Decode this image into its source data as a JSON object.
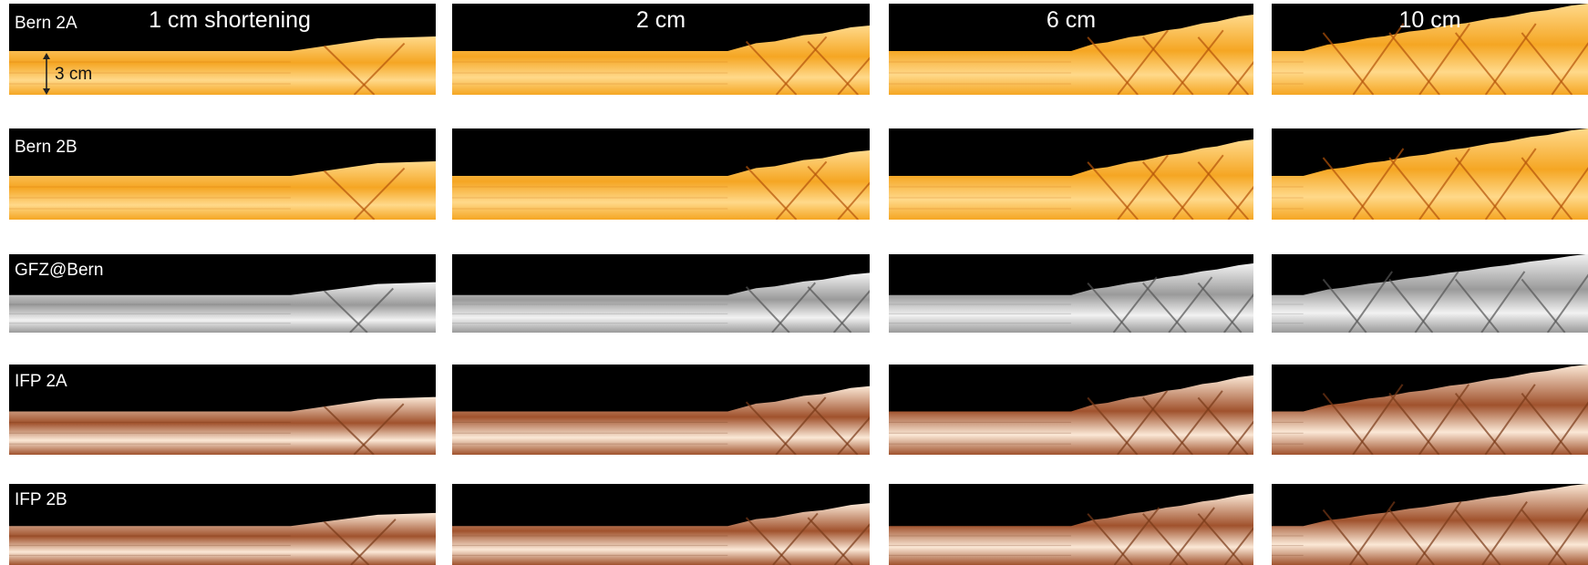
{
  "columns": [
    {
      "title": "1 cm shortening"
    },
    {
      "title": "2 cm"
    },
    {
      "title": "6 cm"
    },
    {
      "title": "10 cm"
    }
  ],
  "rows": [
    {
      "label": "Bern 2A",
      "palette": "orange"
    },
    {
      "label": "Bern 2B",
      "palette": "orange"
    },
    {
      "label": "GFZ@Bern",
      "palette": "gray"
    },
    {
      "label": "IFP 2A",
      "palette": "brown"
    },
    {
      "label": "IFP 2B",
      "palette": "brown"
    }
  ],
  "scale_bar": {
    "label": "3 cm"
  },
  "colors": {
    "background": "#000000",
    "orange_light": "#ffd98a",
    "orange_mid": "#f5a623",
    "gray_light": "#f2f2f2",
    "gray_mid": "#9a9a9a",
    "brown_light": "#fbe8d6",
    "brown_mid": "#a0522d"
  }
}
